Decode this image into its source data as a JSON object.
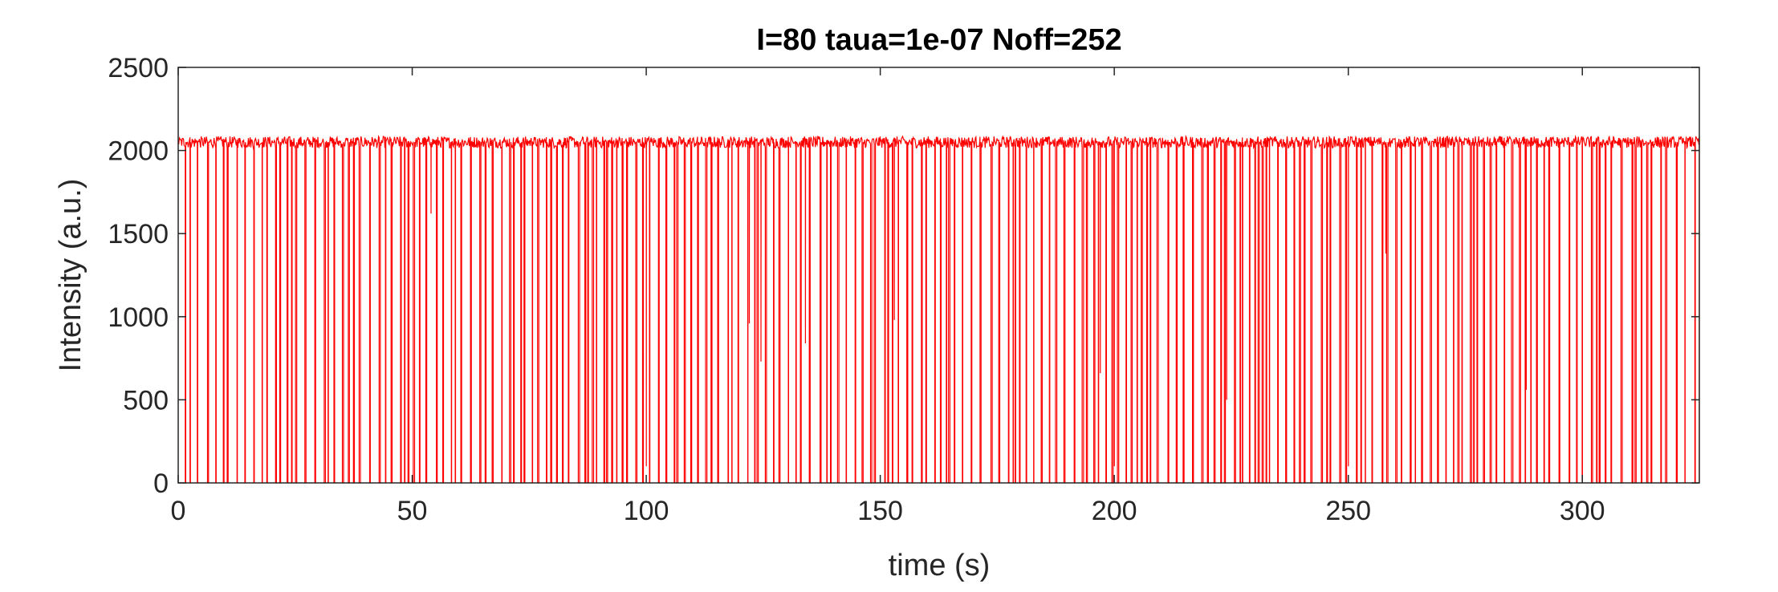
{
  "chart_data": {
    "type": "line",
    "title": "I=80 taua=1e-07 Noff=252",
    "xlabel": "time (s)",
    "ylabel": "Intensity (a.u.)",
    "xlim": [
      0,
      325
    ],
    "ylim": [
      0,
      2500
    ],
    "xticks": [
      0,
      50,
      100,
      150,
      200,
      250,
      300
    ],
    "yticks": [
      0,
      500,
      1000,
      1500,
      2000,
      2500
    ],
    "grid": false,
    "series_color": "#ff0000",
    "on_level": 2050,
    "off_level": 0,
    "off_events": 252,
    "notable_partial_values": [
      {
        "x": 32,
        "y": 280
      },
      {
        "x": 54,
        "y": 1620
      },
      {
        "x": 100,
        "y": 100
      },
      {
        "x": 122,
        "y": 960
      },
      {
        "x": 124.5,
        "y": 730
      },
      {
        "x": 134,
        "y": 840
      },
      {
        "x": 153,
        "y": 980
      },
      {
        "x": 197,
        "y": 660
      },
      {
        "x": 200,
        "y": 100
      },
      {
        "x": 224,
        "y": 500
      },
      {
        "x": 250,
        "y": 100
      },
      {
        "x": 258,
        "y": 1380
      },
      {
        "x": 288,
        "y": 560
      },
      {
        "x": 300,
        "y": 100
      }
    ]
  }
}
